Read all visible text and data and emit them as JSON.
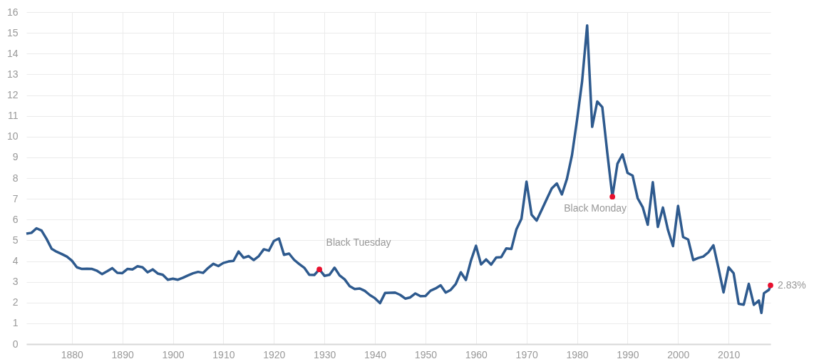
{
  "chart_data": {
    "type": "line",
    "xlim": [
      1871,
      2018.3
    ],
    "xticks": [
      1880,
      1890,
      1900,
      1910,
      1920,
      1930,
      1940,
      1950,
      1960,
      1970,
      1980,
      1990,
      2000,
      2010
    ],
    "ylim": [
      0,
      16
    ],
    "yticks": [
      0,
      1,
      2,
      3,
      4,
      5,
      6,
      7,
      8,
      9,
      10,
      11,
      12,
      13,
      14,
      15,
      16
    ],
    "grid": true,
    "legend": false,
    "series": [
      {
        "type": "line",
        "color": "#2e5a8e",
        "x": [
          1871,
          1872,
          1873,
          1874,
          1875,
          1876,
          1877,
          1878,
          1879,
          1880,
          1881,
          1882,
          1883,
          1884,
          1885,
          1886,
          1887,
          1888,
          1889,
          1890,
          1891,
          1892,
          1893,
          1894,
          1895,
          1896,
          1897,
          1898,
          1899,
          1900,
          1901,
          1902,
          1903,
          1904,
          1905,
          1906,
          1907,
          1908,
          1909,
          1910,
          1911,
          1912,
          1913,
          1914,
          1915,
          1916,
          1917,
          1918,
          1919,
          1920,
          1921,
          1922,
          1923,
          1924,
          1925,
          1926,
          1927,
          1928,
          1929,
          1930,
          1931,
          1932,
          1933,
          1934,
          1935,
          1936,
          1937,
          1938,
          1939,
          1940,
          1941,
          1942,
          1943,
          1944,
          1945,
          1946,
          1947,
          1948,
          1949,
          1950,
          1951,
          1952,
          1953,
          1954,
          1955,
          1956,
          1957,
          1958,
          1959,
          1960,
          1961,
          1962,
          1963,
          1964,
          1965,
          1966,
          1967,
          1968,
          1969,
          1970,
          1971,
          1972,
          1973,
          1974,
          1975,
          1976,
          1977,
          1978,
          1979,
          1980,
          1981,
          1982,
          1983,
          1984,
          1985,
          1986,
          1987,
          1988,
          1989,
          1990,
          1991,
          1992,
          1993,
          1994,
          1995,
          1996,
          1997,
          1998,
          1999,
          2000,
          2001,
          2002,
          2003,
          2004,
          2005,
          2006,
          2007,
          2008,
          2009,
          2010,
          2011,
          2012,
          2013,
          2014,
          2015,
          2016,
          2016.5,
          2017,
          2018,
          2018.3
        ],
        "values": [
          5.32,
          5.36,
          5.58,
          5.47,
          5.07,
          4.59,
          4.45,
          4.34,
          4.22,
          4.02,
          3.7,
          3.62,
          3.63,
          3.62,
          3.53,
          3.37,
          3.51,
          3.66,
          3.43,
          3.42,
          3.62,
          3.6,
          3.75,
          3.7,
          3.46,
          3.6,
          3.4,
          3.34,
          3.1,
          3.15,
          3.1,
          3.2,
          3.31,
          3.41,
          3.48,
          3.43,
          3.67,
          3.87,
          3.76,
          3.91,
          3.98,
          4.01,
          4.46,
          4.16,
          4.24,
          4.05,
          4.24,
          4.57,
          4.5,
          4.97,
          5.09,
          4.3,
          4.36,
          4.06,
          3.86,
          3.68,
          3.34,
          3.33,
          3.6,
          3.29,
          3.34,
          3.68,
          3.31,
          3.12,
          2.79,
          2.65,
          2.68,
          2.56,
          2.36,
          2.21,
          1.97,
          2.46,
          2.47,
          2.48,
          2.37,
          2.19,
          2.25,
          2.44,
          2.31,
          2.32,
          2.57,
          2.68,
          2.83,
          2.48,
          2.61,
          2.9,
          3.46,
          3.09,
          4.02,
          4.74,
          3.84,
          4.08,
          3.83,
          4.17,
          4.19,
          4.61,
          4.58,
          5.53,
          6.04,
          7.83,
          6.24,
          5.95,
          6.46,
          6.99,
          7.5,
          7.74,
          7.21,
          7.96,
          9.1,
          10.8,
          12.65,
          15.36,
          10.47,
          11.69,
          11.42,
          9.2,
          7.1,
          8.69,
          9.14,
          8.25,
          8.12,
          7.03,
          6.6,
          5.75,
          7.8,
          5.65,
          6.58,
          5.5,
          4.72,
          6.66,
          5.16,
          5.04,
          4.05,
          4.15,
          4.22,
          4.42,
          4.76,
          3.66,
          2.49,
          3.7,
          3.41,
          1.94,
          1.9,
          2.9,
          1.89,
          2.1,
          1.5,
          2.45,
          2.62,
          2.83
        ]
      },
      {
        "type": "scatter",
        "color": "#e8102e",
        "x": [
          1929,
          1987,
          2018.3
        ],
        "values": [
          3.6,
          7.1,
          2.83
        ]
      }
    ],
    "annotations": [
      {
        "text": "Black Tuesday",
        "x": 1929,
        "y": 3.6
      },
      {
        "text": "Black Monday",
        "x": 1987,
        "y": 7.1
      },
      {
        "text": "2.83%",
        "x": 2018.3,
        "y": 2.83
      }
    ]
  }
}
